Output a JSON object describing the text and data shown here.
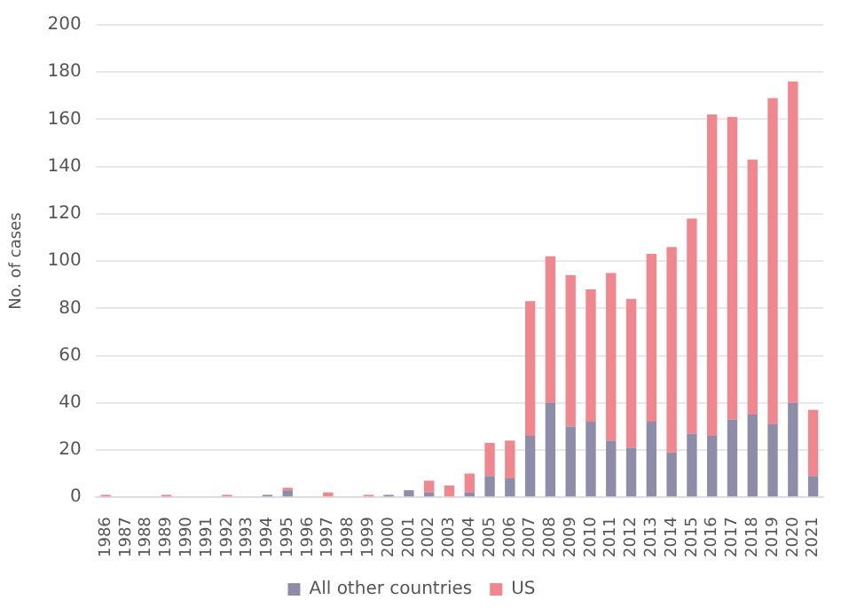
{
  "chart_data": {
    "type": "bar",
    "stacked": true,
    "ylabel": "No. of cases",
    "categories": [
      "1986",
      "1987",
      "1988",
      "1989",
      "1990",
      "1991",
      "1992",
      "1993",
      "1994",
      "1995",
      "1996",
      "1997",
      "1998",
      "1999",
      "2000",
      "2001",
      "2002",
      "2003",
      "2004",
      "2005",
      "2006",
      "2007",
      "2008",
      "2009",
      "2010",
      "2011",
      "2012",
      "2013",
      "2014",
      "2015",
      "2016",
      "2017",
      "2018",
      "2019",
      "2020",
      "2021"
    ],
    "series": [
      {
        "name": "All other countries",
        "color": "#8e8ca8",
        "values": [
          0,
          0,
          0,
          0,
          0,
          0,
          0,
          0,
          1,
          3,
          0,
          0,
          0,
          0,
          1,
          3,
          2,
          0,
          2,
          9,
          8,
          26,
          40,
          30,
          32,
          24,
          21,
          32,
          19,
          27,
          26,
          33,
          35,
          31,
          40,
          9
        ]
      },
      {
        "name": "US",
        "color": "#f0868e",
        "values": [
          1,
          0,
          0,
          1,
          0,
          0,
          1,
          0,
          0,
          1,
          0,
          2,
          0,
          1,
          0,
          0,
          5,
          5,
          8,
          14,
          16,
          57,
          62,
          64,
          56,
          71,
          63,
          71,
          87,
          91,
          136,
          128,
          108,
          138,
          136,
          28
        ]
      }
    ],
    "ylim": [
      0,
      200
    ],
    "yticks": [
      0,
      20,
      40,
      60,
      80,
      100,
      120,
      140,
      160,
      180,
      200
    ],
    "grid": "y",
    "legend": "bottom"
  }
}
